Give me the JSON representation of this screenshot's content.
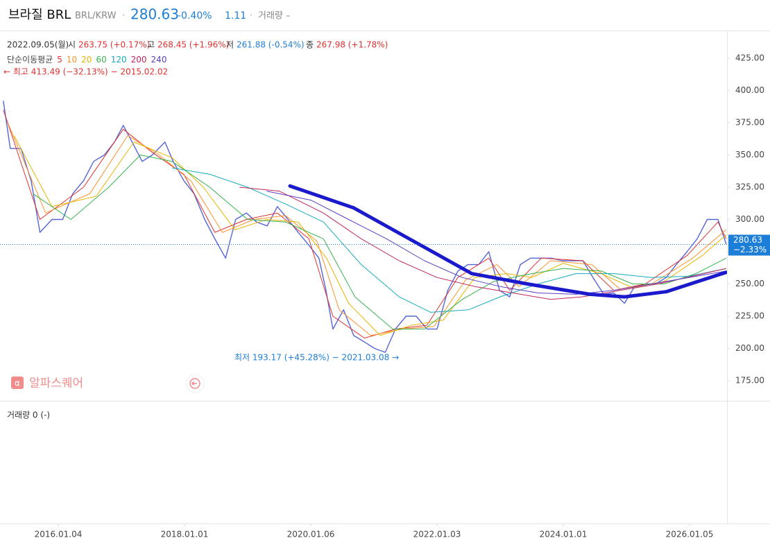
{
  "header": {
    "name": "브라질 BRL",
    "pair": "BRL/KRW",
    "sep1": "·",
    "price": "280.63",
    "change": "-0.40%",
    "extra": "1.11",
    "sep2": "·",
    "volume": "거래량 –"
  },
  "info": {
    "date": "2022.09.05(월)",
    "open_label": "시",
    "open": "263.75 (+0.17%)",
    "high_label": "고",
    "high": "268.45 (+1.96%)",
    "low_label": "저",
    "low": "261.88 (-0.54%)",
    "close_label": "종",
    "close": "267.98 (+1.78%)"
  },
  "watermark": "알파스퀘어",
  "volume_label": "거래량 0 (-)",
  "chart_data": {
    "type": "line",
    "legend_title": "단순이동평균",
    "max_label": "← 최고 413.49 (−32.13%) − 2015.02.02",
    "min_label": "최저 193.17 (+45.28%) − 2021.03.08 →",
    "current_price": 280.63,
    "current_change": "−2.33%",
    "current_color": "#1c7ed6",
    "xlim": [
      2015.077,
      2026.593
    ],
    "ylim": [
      159.4,
      446
    ],
    "xticks": [
      {
        "value": 2016.0,
        "label": "2016.01.04"
      },
      {
        "value": 2018.0,
        "label": "2018.01.01"
      },
      {
        "value": 2020.0,
        "label": "2020.01.06"
      },
      {
        "value": 2022.0,
        "label": "2022.01.03"
      },
      {
        "value": 2024.0,
        "label": "2024.01.01"
      },
      {
        "value": 2026.0,
        "label": "2026.01.05"
      }
    ],
    "yticks": [
      {
        "value": 175,
        "label": "175.00"
      },
      {
        "value": 200,
        "label": "200.00"
      },
      {
        "value": 225,
        "label": "225.00"
      },
      {
        "value": 250,
        "label": "250.00"
      },
      {
        "value": 275,
        "label": "275.00"
      },
      {
        "value": 300,
        "label": "300.00"
      },
      {
        "value": 325,
        "label": "325.00"
      },
      {
        "value": 350,
        "label": "350.00"
      },
      {
        "value": 375,
        "label": "375.00"
      },
      {
        "value": 400,
        "label": "400.00"
      },
      {
        "value": 425,
        "label": "425.00"
      }
    ],
    "series": [
      {
        "color": "#5465d8",
        "x": [
          2015.13,
          2015.24,
          2015.41,
          2015.57,
          2015.71,
          2015.9,
          2016.07,
          2016.23,
          2016.4,
          2016.56,
          2016.73,
          2016.89,
          2017.03,
          2017.17,
          2017.33,
          2017.49,
          2017.69,
          2017.82,
          2017.99,
          2018.15,
          2018.32,
          2018.48,
          2018.65,
          2018.81,
          2018.98,
          2019.14,
          2019.31,
          2019.47,
          2019.64,
          2019.8,
          2019.97,
          2020.13,
          2020.24,
          2020.35,
          2020.52,
          2020.68,
          2020.85,
          2021.01,
          2021.18,
          2021.34,
          2021.51,
          2021.67,
          2021.84,
          2022.0,
          2022.17,
          2022.33,
          2022.49,
          2022.66,
          2022.82,
          2022.99,
          2023.15,
          2023.32,
          2023.48,
          2023.65,
          2023.81,
          2023.98,
          2024.14,
          2024.31,
          2024.47,
          2024.64,
          2024.8,
          2024.97,
          2025.13,
          2025.3,
          2025.46,
          2025.63,
          2025.79,
          2025.96,
          2026.12,
          2026.28,
          2026.45,
          2026.58
        ],
        "values": [
          392,
          355,
          355,
          330,
          290,
          300,
          300,
          320,
          330,
          345,
          350,
          360,
          373,
          360,
          345,
          350,
          360,
          345,
          330,
          320,
          300,
          285,
          270,
          300,
          305,
          298,
          295,
          310,
          300,
          290,
          280,
          270,
          245,
          215,
          230,
          210,
          205,
          200,
          197,
          215,
          225,
          225,
          215,
          215,
          245,
          260,
          265,
          265,
          275,
          245,
          240,
          265,
          270,
          270,
          270,
          268,
          268,
          268,
          255,
          242,
          243,
          235,
          248,
          250,
          250,
          255,
          265,
          275,
          285,
          300,
          300,
          281
        ]
      },
      {
        "name": "5",
        "color": "#e03131",
        "x": [
          2015.13,
          2015.71,
          2016.4,
          2017.03,
          2017.49,
          2017.99,
          2018.48,
          2018.98,
          2019.47,
          2019.97,
          2020.35,
          2020.85,
          2021.34,
          2021.84,
          2022.33,
          2022.82,
          2023.15,
          2023.65,
          2024.31,
          2024.8,
          2025.3,
          2025.96,
          2026.45,
          2026.58
        ],
        "values": [
          385,
          300,
          325,
          370,
          352,
          335,
          290,
          300,
          305,
          285,
          225,
          208,
          215,
          218,
          255,
          270,
          245,
          270,
          268,
          245,
          250,
          272,
          298,
          285
        ]
      },
      {
        "name": "10",
        "color": "#ff922b",
        "x": [
          2015.2,
          2015.8,
          2016.5,
          2017.1,
          2017.6,
          2018.1,
          2018.6,
          2019.1,
          2019.6,
          2020.1,
          2020.45,
          2020.95,
          2021.45,
          2021.95,
          2022.45,
          2022.95,
          2023.3,
          2023.8,
          2024.45,
          2024.9,
          2025.4,
          2026.05,
          2026.58
        ],
        "values": [
          375,
          305,
          320,
          365,
          350,
          330,
          290,
          300,
          303,
          283,
          230,
          210,
          215,
          217,
          253,
          265,
          248,
          268,
          265,
          246,
          250,
          270,
          292
        ]
      },
      {
        "name": "20",
        "color": "#e8b400",
        "x": [
          2015.3,
          2015.9,
          2016.6,
          2017.2,
          2017.8,
          2018.3,
          2018.8,
          2019.3,
          2019.8,
          2020.25,
          2020.6,
          2021.1,
          2021.6,
          2022.1,
          2022.6,
          2023.1,
          2023.5,
          2024.0,
          2024.6,
          2025.1,
          2025.6,
          2026.2,
          2026.58
        ],
        "values": [
          365,
          310,
          318,
          360,
          348,
          325,
          292,
          300,
          298,
          270,
          235,
          210,
          218,
          222,
          255,
          258,
          255,
          266,
          258,
          247,
          252,
          272,
          288
        ]
      },
      {
        "name": "60",
        "color": "#37b24d",
        "x": [
          2015.6,
          2016.2,
          2016.8,
          2017.3,
          2017.8,
          2018.4,
          2019.0,
          2019.6,
          2020.2,
          2020.7,
          2021.3,
          2021.8,
          2022.4,
          2022.9,
          2023.5,
          2024.0,
          2024.6,
          2025.1,
          2025.6,
          2026.1,
          2026.58
        ],
        "values": [
          320,
          300,
          325,
          350,
          345,
          325,
          300,
          298,
          285,
          240,
          215,
          215,
          238,
          252,
          258,
          262,
          260,
          250,
          250,
          258,
          270
        ]
      },
      {
        "name": "120",
        "color": "#15aabf",
        "x": [
          2017.8,
          2018.4,
          2019.0,
          2019.6,
          2020.2,
          2020.8,
          2021.4,
          2021.9,
          2022.5,
          2023.0,
          2023.6,
          2024.2,
          2024.8,
          2025.4,
          2026.0,
          2026.58
        ],
        "values": [
          340,
          335,
          325,
          312,
          298,
          265,
          240,
          228,
          230,
          240,
          250,
          258,
          258,
          255,
          256,
          262
        ]
      },
      {
        "name": "200",
        "color": "#c2255c",
        "x": [
          2018.87,
          2019.5,
          2020.2,
          2020.8,
          2021.4,
          2022.0,
          2022.6,
          2023.2,
          2023.8,
          2024.3,
          2024.9,
          2025.5,
          2026.58
        ],
        "values": [
          325,
          322,
          305,
          285,
          268,
          255,
          248,
          243,
          238,
          240,
          245,
          250,
          262
        ]
      },
      {
        "name": "240",
        "color": "#5f3dc4",
        "x": [
          2019.3,
          2020.0,
          2020.6,
          2021.2,
          2021.8,
          2022.4,
          2023.0,
          2023.6,
          2024.2,
          2024.8,
          2025.4,
          2026.58
        ],
        "values": [
          322,
          315,
          300,
          285,
          268,
          255,
          248,
          243,
          242,
          245,
          250,
          260
        ]
      }
    ],
    "trend_line": {
      "color": "#1a1acc",
      "x": [
        2019.67,
        2020.68,
        2021.67,
        2022.55,
        2023.43,
        2024.42,
        2024.97,
        2025.63,
        2026.58
      ],
      "values": [
        326,
        309,
        282,
        258,
        250,
        242,
        240,
        244,
        259
      ]
    }
  }
}
